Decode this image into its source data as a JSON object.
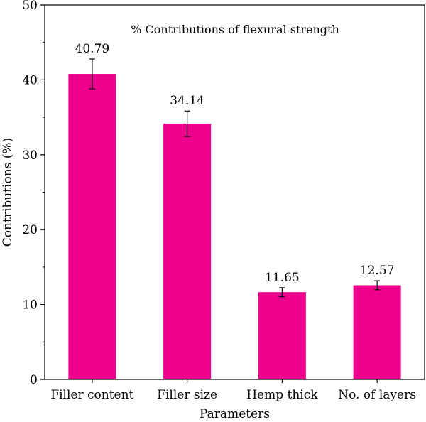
{
  "chart_data": {
    "type": "bar",
    "title": "% Contributions of flexural strength",
    "xlabel": "Parameters",
    "ylabel": "Contributions (%)",
    "ylim": [
      0,
      50
    ],
    "yticks": [
      0,
      10,
      20,
      30,
      40,
      50
    ],
    "grid": false,
    "categories": [
      "Filler content",
      "Filler size",
      "Hemp thick",
      "No. of layers"
    ],
    "values": [
      40.79,
      34.14,
      11.65,
      12.57
    ],
    "value_labels": [
      "40.79",
      "34.14",
      "11.65",
      "12.57"
    ],
    "error_bars": [
      2.0,
      1.7,
      0.6,
      0.6
    ],
    "bar_color": "#ec008c"
  }
}
